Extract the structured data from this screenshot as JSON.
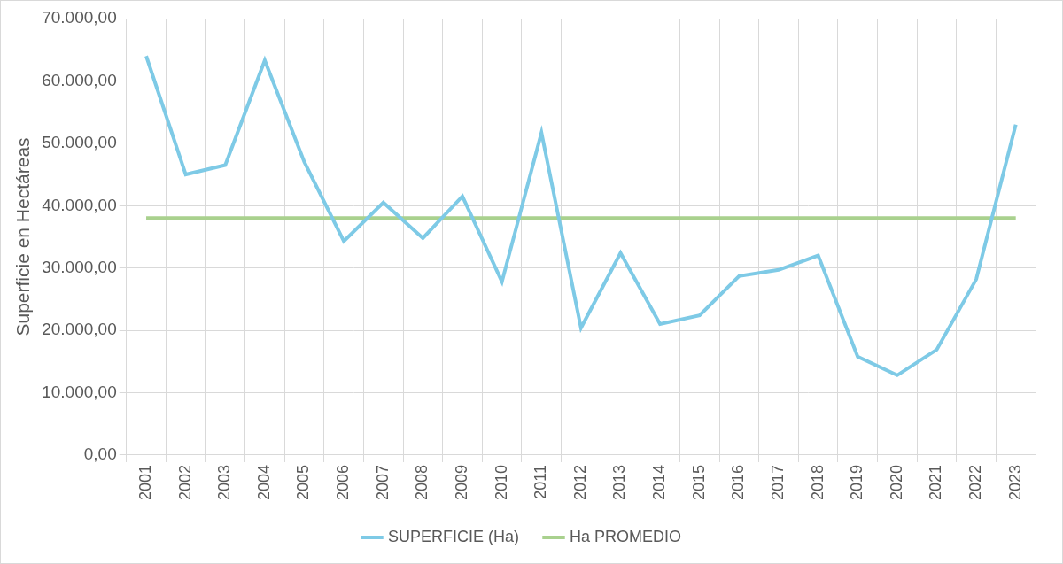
{
  "chart_data": {
    "type": "line",
    "y_label": "Superficie en Hectáreas",
    "categories": [
      "2001",
      "2002",
      "2003",
      "2004",
      "2005",
      "2006",
      "2007",
      "2008",
      "2009",
      "2010",
      "2011",
      "2012",
      "2013",
      "2014",
      "2015",
      "2016",
      "2017",
      "2018",
      "2019",
      "2020",
      "2021",
      "2022",
      "2023"
    ],
    "series": [
      {
        "name": "SUPERFICIE (Ha)",
        "color": "#7ecae6",
        "values": [
          64000,
          45000,
          46500,
          63300,
          47000,
          34300,
          40500,
          34800,
          41500,
          27800,
          51700,
          20400,
          32400,
          21000,
          22400,
          28700,
          29700,
          32000,
          15800,
          12800,
          16900,
          28200,
          53000
        ]
      },
      {
        "name": "Ha PROMEDIO",
        "color": "#a9d18e",
        "values": [
          38000,
          38000,
          38000,
          38000,
          38000,
          38000,
          38000,
          38000,
          38000,
          38000,
          38000,
          38000,
          38000,
          38000,
          38000,
          38000,
          38000,
          38000,
          38000,
          38000,
          38000,
          38000,
          38000
        ]
      }
    ],
    "ylim": [
      0,
      70000
    ],
    "yticks": [
      {
        "value": 0,
        "label": "0,00"
      },
      {
        "value": 10000,
        "label": "10.000,00"
      },
      {
        "value": 20000,
        "label": "20.000,00"
      },
      {
        "value": 30000,
        "label": "30.000,00"
      },
      {
        "value": 40000,
        "label": "40.000,00"
      },
      {
        "value": 50000,
        "label": "50.000,00"
      },
      {
        "value": 60000,
        "label": "60.000,00"
      },
      {
        "value": 70000,
        "label": "70.000,00"
      }
    ],
    "grid": true,
    "legend": "bottom"
  }
}
